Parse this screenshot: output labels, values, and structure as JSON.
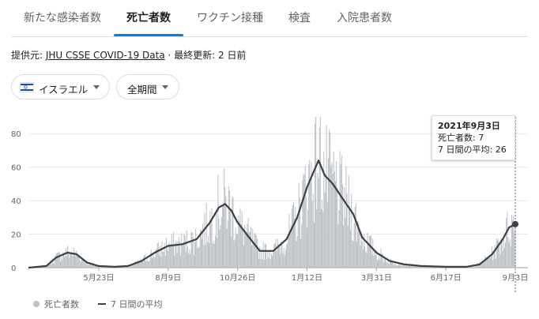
{
  "tabs": [
    {
      "label": "新たな感染者数",
      "active": false
    },
    {
      "label": "死亡者数",
      "active": true
    },
    {
      "label": "ワクチン接種",
      "active": false
    },
    {
      "label": "検査",
      "active": false
    },
    {
      "label": "入院患者数",
      "active": false
    }
  ],
  "source": {
    "prefix": "提供元: ",
    "link": "JHU CSSE COVID-19 Data",
    "separator": " · ",
    "updated": "最終更新: 2 日前"
  },
  "filters": {
    "country": "イスラエル",
    "period": "全期間"
  },
  "tooltip": {
    "date": "2021年9月3日",
    "deaths": "死亡者数: 7",
    "avg": "7 日間の平均: 26"
  },
  "legend": {
    "bars": "死亡者数",
    "line": "7 日間の平均"
  },
  "colors": {
    "bars": "#bdc1c6",
    "line": "#3c4043",
    "accent": "#1a73e8",
    "grid": "#e8eaed"
  },
  "chart_data": {
    "type": "bar",
    "title": "",
    "xlabel": "",
    "ylabel": "",
    "ylim": [
      0,
      90
    ],
    "y_ticks": [
      0,
      20,
      40,
      60,
      80
    ],
    "x_ticks": [
      "5月23日",
      "8月9日",
      "10月26日",
      "1月12日",
      "3月31日",
      "6月17日",
      "9月3日"
    ],
    "x_range": [
      "2020-03-05",
      "2021-09-03"
    ],
    "grid": true,
    "legend_position": "bottom-left",
    "series": [
      {
        "kind": "bar",
        "label": "死亡者数",
        "note": "daily values (bars)"
      },
      {
        "kind": "line",
        "label": "7 日間の平均",
        "points": [
          [
            "2020-03-05",
            0
          ],
          [
            "2020-03-25",
            1
          ],
          [
            "2020-04-05",
            6
          ],
          [
            "2020-04-18",
            9
          ],
          [
            "2020-04-28",
            8
          ],
          [
            "2020-05-10",
            3
          ],
          [
            "2020-05-23",
            1
          ],
          [
            "2020-06-10",
            0.5
          ],
          [
            "2020-06-25",
            1
          ],
          [
            "2020-07-10",
            4
          ],
          [
            "2020-07-25",
            9
          ],
          [
            "2020-08-09",
            13
          ],
          [
            "2020-08-25",
            14
          ],
          [
            "2020-09-10",
            17
          ],
          [
            "2020-09-25",
            27
          ],
          [
            "2020-10-05",
            36
          ],
          [
            "2020-10-12",
            38
          ],
          [
            "2020-10-19",
            34
          ],
          [
            "2020-10-26",
            27
          ],
          [
            "2020-11-08",
            18
          ],
          [
            "2020-11-20",
            10
          ],
          [
            "2020-12-05",
            10
          ],
          [
            "2020-12-20",
            17
          ],
          [
            "2021-01-01",
            30
          ],
          [
            "2021-01-12",
            48
          ],
          [
            "2021-01-20",
            58
          ],
          [
            "2021-01-25",
            64
          ],
          [
            "2021-02-01",
            55
          ],
          [
            "2021-02-10",
            50
          ],
          [
            "2021-02-20",
            42
          ],
          [
            "2021-03-05",
            32
          ],
          [
            "2021-03-15",
            18
          ],
          [
            "2021-03-31",
            9
          ],
          [
            "2021-04-15",
            4
          ],
          [
            "2021-05-01",
            2
          ],
          [
            "2021-05-20",
            1
          ],
          [
            "2021-06-17",
            0.5
          ],
          [
            "2021-07-10",
            0.5
          ],
          [
            "2021-07-25",
            2
          ],
          [
            "2021-08-08",
            8
          ],
          [
            "2021-08-20",
            17
          ],
          [
            "2021-08-27",
            24
          ],
          [
            "2021-09-03",
            26
          ]
        ]
      }
    ],
    "highlight": {
      "date": "2021-09-03",
      "deaths": 7,
      "avg": 26
    }
  }
}
